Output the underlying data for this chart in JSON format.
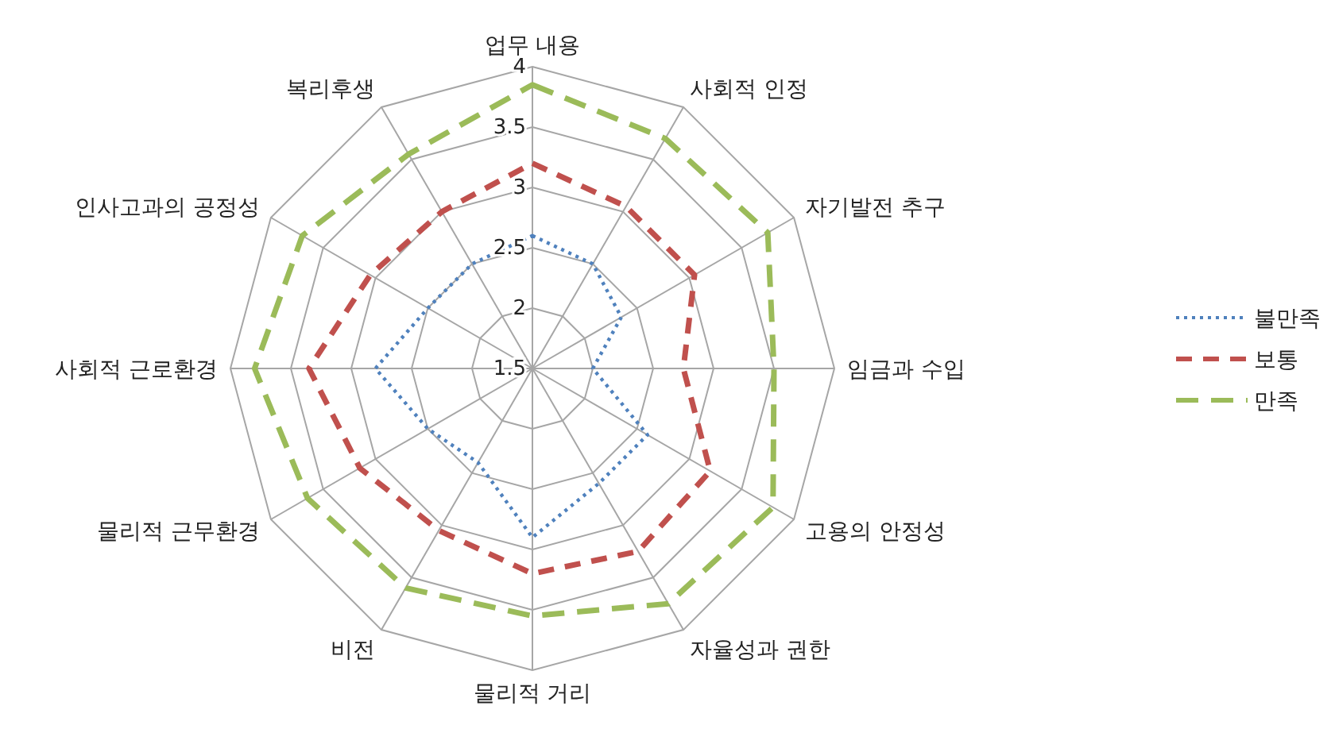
{
  "chart_data": {
    "type": "radar",
    "categories": [
      "업무 내용",
      "사회적 인정",
      "자기발전 추구",
      "임금과 수입",
      "고용의 안정성",
      "자율성과 권한",
      "물리적 거리",
      "비전",
      "물리적 근무환경",
      "사회적 근로환경",
      "인사고과의 공정성",
      "복리후생"
    ],
    "series": [
      {
        "name": "불만족",
        "color": "#4f81bd",
        "line_style": "dotted",
        "values": [
          2.6,
          2.5,
          2.35,
          2.0,
          2.6,
          2.6,
          2.9,
          2.4,
          2.5,
          2.8,
          2.5,
          2.5
        ]
      },
      {
        "name": "보통",
        "color": "#c0504d",
        "line_style": "dashed",
        "values": [
          3.2,
          3.05,
          3.05,
          2.75,
          3.2,
          3.25,
          3.2,
          3.05,
          3.15,
          3.35,
          3.05,
          3.0
        ]
      },
      {
        "name": "만족",
        "color": "#9bbb59",
        "line_style": "dashed",
        "values": [
          3.85,
          3.7,
          3.75,
          3.5,
          3.8,
          3.75,
          3.55,
          3.6,
          3.65,
          3.8,
          3.7,
          3.55
        ]
      }
    ],
    "ylim": [
      1.5,
      4
    ],
    "yticks": [
      1.5,
      2,
      2.5,
      3,
      3.5,
      4
    ],
    "grid": true,
    "legend": "right"
  }
}
